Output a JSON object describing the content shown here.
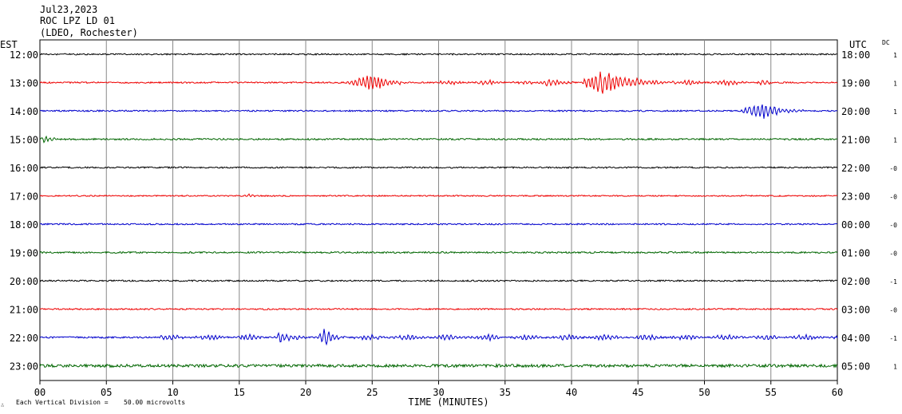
{
  "header": {
    "date": "Jul23,2023",
    "station": "ROC LPZ LD 01",
    "network": "(LDEO, Rochester)"
  },
  "labels": {
    "left_tz": "EST",
    "right_tz": "UTC",
    "dc": "DC",
    "x_title": "TIME (MINUTES)",
    "footer_prefix": "Each Vertical Division =",
    "footer_value": "50.00 microvolts",
    "footer_mark": "∴"
  },
  "chart_data": {
    "type": "line",
    "xlabel": "TIME (MINUTES)",
    "xlim": [
      0,
      60
    ],
    "x_ticks": [
      "00",
      "05",
      "10",
      "15",
      "20",
      "25",
      "30",
      "35",
      "40",
      "45",
      "50",
      "55",
      "60"
    ],
    "grid": true,
    "colors": [
      "#000000",
      "#ee0000",
      "#0000cc",
      "#006600"
    ],
    "rows": [
      {
        "est": "12:00",
        "utc": "18:00",
        "dc": "1",
        "color": "#000000",
        "noise": 0.9,
        "events": []
      },
      {
        "est": "13:00",
        "utc": "19:00",
        "dc": "1",
        "color": "#ee0000",
        "noise": 0.9,
        "events": [
          {
            "start": 22.8,
            "peak": 25.0,
            "end": 28.2,
            "amp": 11
          },
          {
            "start": 30.0,
            "end": 37.0,
            "amp": 2.5
          },
          {
            "start": 37.5,
            "peak": 38.4,
            "end": 40.2,
            "amp": 6
          },
          {
            "start": 40.5,
            "peak": 42.1,
            "end": 48.0,
            "amp": 16
          },
          {
            "start": 48.0,
            "end": 55.0,
            "amp": 3
          }
        ]
      },
      {
        "est": "14:00",
        "utc": "20:00",
        "dc": "1",
        "color": "#0000cc",
        "noise": 0.9,
        "events": [
          {
            "start": 52.5,
            "peak": 54.4,
            "end": 57.5,
            "amp": 11
          }
        ]
      },
      {
        "est": "15:00",
        "utc": "21:00",
        "dc": "1",
        "color": "#006600",
        "noise": 1.0,
        "events": [
          {
            "start": 0.0,
            "peak": 0.3,
            "end": 1.8,
            "amp": 4
          }
        ]
      },
      {
        "est": "16:00",
        "utc": "22:00",
        "dc": "-0",
        "color": "#000000",
        "noise": 0.9,
        "events": []
      },
      {
        "est": "17:00",
        "utc": "23:00",
        "dc": "-0",
        "color": "#ee0000",
        "noise": 0.8,
        "events": [
          {
            "start": 15.2,
            "peak": 15.8,
            "end": 16.6,
            "amp": 2.5
          }
        ]
      },
      {
        "est": "18:00",
        "utc": "00:00",
        "dc": "-0",
        "color": "#0000cc",
        "noise": 0.9,
        "events": []
      },
      {
        "est": "19:00",
        "utc": "01:00",
        "dc": "-0",
        "color": "#006600",
        "noise": 1.0,
        "events": []
      },
      {
        "est": "20:00",
        "utc": "02:00",
        "dc": "-1",
        "color": "#000000",
        "noise": 0.9,
        "events": []
      },
      {
        "est": "21:00",
        "utc": "03:00",
        "dc": "-0",
        "color": "#ee0000",
        "noise": 0.9,
        "events": []
      },
      {
        "est": "22:00",
        "utc": "04:00",
        "dc": "-1",
        "color": "#0000cc",
        "noise": 1.0,
        "events": [
          {
            "start": 9.0,
            "end": 60.0,
            "amp": 3.5
          },
          {
            "start": 17.8,
            "peak": 18.0,
            "end": 18.8,
            "amp": 10
          },
          {
            "start": 20.8,
            "peak": 21.5,
            "end": 23.0,
            "amp": 13
          },
          {
            "start": 24.5,
            "peak": 25.0,
            "end": 26.0,
            "amp": 5
          }
        ]
      },
      {
        "est": "23:00",
        "utc": "05:00",
        "dc": "1",
        "color": "#006600",
        "noise": 1.8,
        "events": []
      }
    ]
  }
}
